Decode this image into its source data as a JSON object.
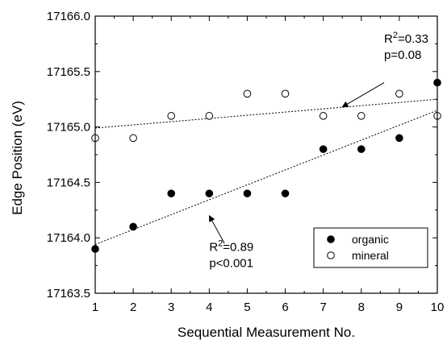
{
  "chart_data": {
    "type": "scatter",
    "xlabel": "Sequential Measurement No.",
    "ylabel": "Edge Position (eV)",
    "xlim": [
      1,
      10
    ],
    "ylim": [
      17163.5,
      17166.0
    ],
    "x_ticks": [
      "1",
      "2",
      "3",
      "4",
      "5",
      "6",
      "7",
      "8",
      "9",
      "10"
    ],
    "y_ticks": [
      "17163.5",
      "17164.0",
      "17164.5",
      "17165.0",
      "17165.5",
      "17166.0"
    ],
    "grid": false,
    "legend_position": "bottom-right",
    "series": [
      {
        "name": "organic",
        "marker": "filled-circle",
        "color": "#000000",
        "x": [
          1,
          2,
          3,
          4,
          5,
          6,
          7,
          8,
          9,
          10
        ],
        "y": [
          17163.9,
          17164.1,
          17164.4,
          17164.4,
          17164.4,
          17164.4,
          17164.8,
          17164.8,
          17164.9,
          17165.4
        ],
        "fit": {
          "x": [
            1,
            10
          ],
          "y": [
            17163.94,
            17165.15
          ]
        }
      },
      {
        "name": "mineral",
        "marker": "open-circle",
        "color": "#000000",
        "x": [
          1,
          2,
          3,
          4,
          5,
          6,
          7,
          8,
          9,
          10
        ],
        "y": [
          17164.9,
          17164.9,
          17165.1,
          17165.1,
          17165.3,
          17165.3,
          17165.1,
          17165.1,
          17165.3,
          17165.1
        ],
        "fit": {
          "x": [
            1,
            10
          ],
          "y": [
            17164.99,
            17165.25
          ]
        }
      }
    ],
    "annotations": [
      {
        "id": "mineral",
        "r2_base": "R",
        "r2_sup": "2",
        "r2_value": "=0.33",
        "p_text": "p=0.08",
        "text_at": [
          8.6,
          17165.76
        ],
        "arrow_from": [
          8.6,
          17165.4
        ],
        "arrow_to": [
          7.5,
          17165.18
        ]
      },
      {
        "id": "organic",
        "r2_base": "R",
        "r2_sup": "2",
        "r2_value": "=0.89",
        "p_text": "p<0.001",
        "text_at": [
          4.0,
          17163.88
        ],
        "arrow_from": [
          4.4,
          17163.95
        ],
        "arrow_to": [
          4.0,
          17164.2
        ]
      }
    ]
  }
}
